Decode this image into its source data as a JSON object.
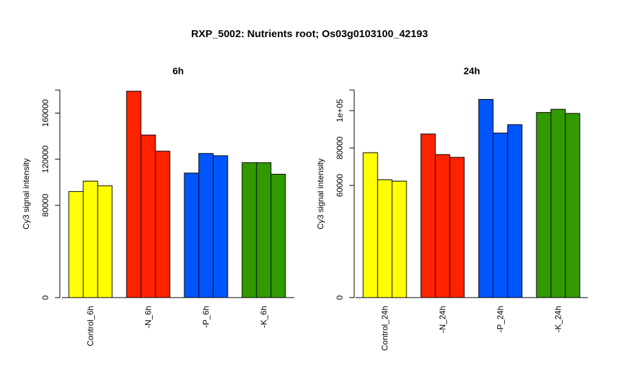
{
  "title": "RXP_5002: Nutrients root; Os03g0103100_42193",
  "chart_data": [
    {
      "type": "bar",
      "title": "6h",
      "ylabel": "Cy3 signal intensity",
      "ylim": [
        0,
        180000
      ],
      "yticks": [
        0,
        80000,
        120000,
        160000
      ],
      "ytick_labels": [
        "0",
        "80000",
        "120000",
        "160000"
      ],
      "categories": [
        "Control_6h",
        "-N_6h",
        "-P_6h",
        "-K_6h"
      ],
      "group_colors": [
        "#ffff00",
        "#ff2200",
        "#0055ff",
        "#339900"
      ],
      "values": [
        [
          92000,
          101000,
          97000
        ],
        [
          179000,
          141000,
          127000
        ],
        [
          108000,
          125000,
          123000
        ],
        [
          117000,
          117000,
          107000
        ]
      ]
    },
    {
      "type": "bar",
      "title": "24h",
      "ylabel": "Cy3 signal intensity",
      "ylim": [
        0,
        111000
      ],
      "yticks": [
        0,
        60000,
        80000,
        100000
      ],
      "ytick_labels": [
        "0",
        "60000",
        "80000",
        "1e+05"
      ],
      "categories": [
        "Control_24h",
        "-N_24h",
        "-P_24h",
        "-K_24h"
      ],
      "group_colors": [
        "#ffff00",
        "#ff2200",
        "#0055ff",
        "#339900"
      ],
      "values": [
        [
          77500,
          63000,
          62300
        ],
        [
          87500,
          76500,
          75000
        ],
        [
          106000,
          88000,
          92500
        ],
        [
          99000,
          100700,
          98500
        ]
      ]
    }
  ]
}
